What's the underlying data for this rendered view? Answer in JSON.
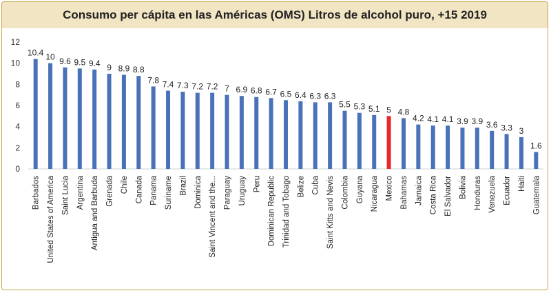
{
  "chart_data": {
    "type": "bar",
    "title": "Consumo per cápita en las Américas (OMS) Litros de alcohol puro, +15 2019",
    "categories": [
      "Barbados",
      "United States of America",
      "Saint Lucia",
      "Argentina",
      "Antigua and Barbuda",
      "Grenada",
      "Chile",
      "Canada",
      "Panama",
      "Suriname",
      "Brazil",
      "Dominica",
      "Saint Vincent and the...",
      "Paraguay",
      "Uruguay",
      "Peru",
      "Dominican Republic",
      "Trinidad and Tobago",
      "Belize",
      "Cuba",
      "Saint Kitts and Nevis",
      "Colombia",
      "Guyana",
      "Nicaragua",
      "Mexico",
      "Bahamas",
      "Jamaica",
      "Costa Rica",
      "El Salvador",
      "Bolivia",
      "Honduras",
      "Venezuela",
      "Ecuador",
      "Haiti",
      "Guatemala"
    ],
    "values": [
      10.4,
      10,
      9.6,
      9.5,
      9.4,
      9,
      8.9,
      8.8,
      7.8,
      7.4,
      7.3,
      7.2,
      7.2,
      7,
      6.9,
      6.8,
      6.7,
      6.5,
      6.4,
      6.3,
      6.3,
      5.5,
      5.3,
      5.1,
      5,
      4.8,
      4.2,
      4.1,
      4.1,
      3.9,
      3.9,
      3.6,
      3.3,
      3,
      1.6
    ],
    "data_labels": [
      "10.4",
      "10",
      "9.6",
      "9.5",
      "9.4",
      "9",
      "8.9",
      "8.8",
      "7.8",
      "7.4",
      "7.3",
      "7.2",
      "7.2",
      "7",
      "6.9",
      "6.8",
      "6.7",
      "6.5",
      "6.4",
      "6.3",
      "6.3",
      "5.5",
      "5.3",
      "5.1",
      "5",
      "4.8",
      "4.2",
      "4.1",
      "4.1",
      "3.9",
      "3.9",
      "3.6",
      "3.3",
      "3",
      "1.6"
    ],
    "highlight": "Mexico",
    "ylim": [
      0,
      12
    ],
    "yticks": [
      "0",
      "2",
      "4",
      "6",
      "8",
      "10",
      "12"
    ],
    "grid": false,
    "colors": {
      "bar": "#4a72b8",
      "highlight": "#e8272d",
      "title_bg": "#f1e5c4",
      "border": "#c9a24a"
    }
  }
}
